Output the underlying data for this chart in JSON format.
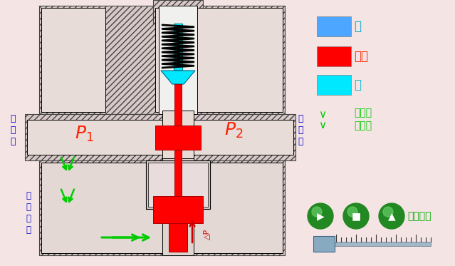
{
  "bg_color": "#f5e4e4",
  "hatch_color": "#d8c8c8",
  "cavity_color": "#e8dcd8",
  "outline_color": "#000000",
  "spring_color": "#000000",
  "cyan_color": "#00e8ff",
  "red_color": "#ff0000",
  "blue_legend_color": "#4da6ff",
  "legend_items": [
    {
      "label": "油",
      "color": "#4da6ff",
      "text_color": "#00aacc"
    },
    {
      "label": "活塞",
      "color": "#ff0000",
      "text_color": "#ff2200"
    },
    {
      "label": "阀",
      "color": "#00e8ff",
      "text_color": "#00bbcc"
    }
  ],
  "flow_text": "液体流\n动方向",
  "flow_color": "#00cc00",
  "P1_text": "P",
  "P2_text": "P",
  "jin_you": "进\n油\n口",
  "chu_you": "出\n油\n口",
  "kong_zhi": "控\n制\n油\n路",
  "delta_p": "△P",
  "return_text": "返回上页",
  "green_color": "#00cc00",
  "red_arrow_color": "#cc0000",
  "blue_label_color": "#0000cc"
}
